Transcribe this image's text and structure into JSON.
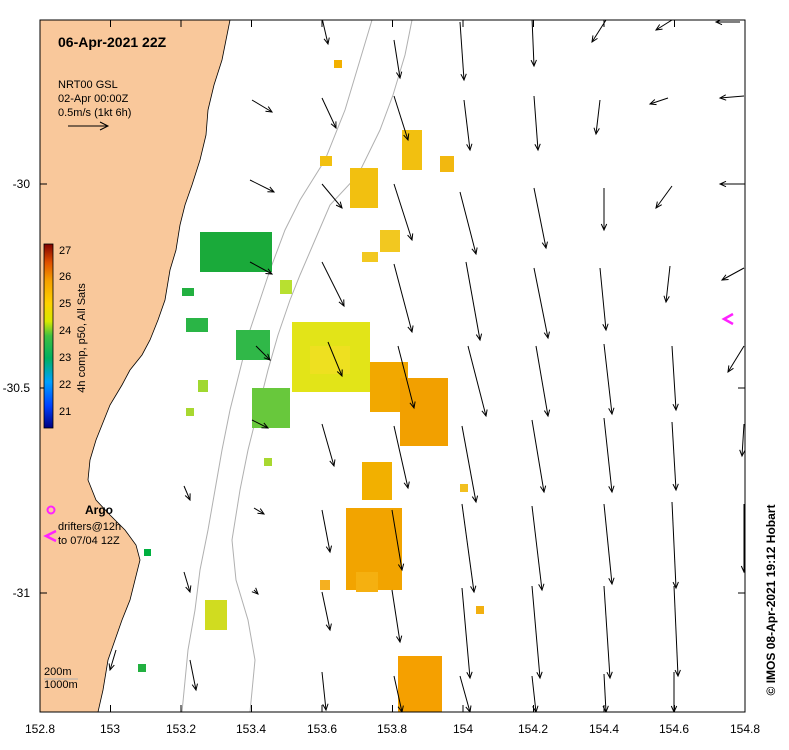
{
  "title": {
    "date_label": "06-Apr-2021 22Z"
  },
  "product": {
    "line1": "NRT00 GSL",
    "line2": "02-Apr 00:00Z",
    "scale_label": "0.5m/s (1kt 6h)"
  },
  "axes": {
    "x_ticks": [
      "152.8",
      "153",
      "153.2",
      "153.4",
      "153.6",
      "153.8",
      "154",
      "154.2",
      "154.4",
      "154.6",
      "154.8"
    ],
    "y_ticks": [
      "-30",
      "-30.5",
      "-31"
    ]
  },
  "colorbar": {
    "title": "4h comp, p50, All Sats",
    "ticks": [
      "27",
      "26",
      "25",
      "24",
      "23",
      "22",
      "21"
    ]
  },
  "legend": {
    "argo_label": "Argo",
    "drifters_line1": "drifters@12h",
    "drifters_line2": "to 07/04 12Z",
    "depth_200": "200m",
    "depth_1000": "1000m"
  },
  "credit": "© IMOS 08-Apr-2021 19:12 Hobart",
  "colors": {
    "land": "#f9c89b",
    "argo_magenta": "#ff22ff",
    "contour": "#b0b0b0"
  }
}
